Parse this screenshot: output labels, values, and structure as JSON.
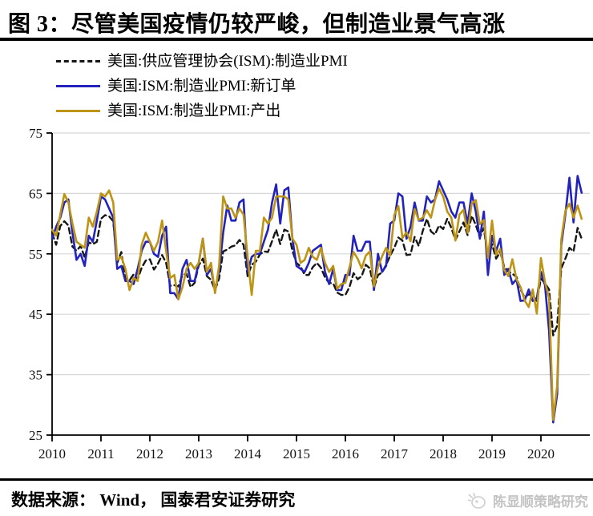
{
  "title": "图 3：尽管美国疫情仍较严峻，但制造业景气高涨",
  "legend": {
    "items": [
      {
        "label": "美国:供应管理协会(ISM):制造业PMI",
        "color": "#161616",
        "dash": true
      },
      {
        "label": "美国:ISM:制造业PMI:新订单",
        "color": "#2222bd",
        "dash": false
      },
      {
        "label": "美国:ISM:制造业PMI:产出",
        "color": "#bd9414",
        "dash": false
      }
    ]
  },
  "footer": {
    "source": "数据来源： Wind， 国泰君安证券研究",
    "watermark": "陈显顺策略研究"
  },
  "chart_data": {
    "type": "line",
    "frequency": "monthly",
    "x_range": [
      "2010-01",
      "2020-11"
    ],
    "x_tick_labels": [
      "2010",
      "2011",
      "2012",
      "2013",
      "2014",
      "2015",
      "2016",
      "2017",
      "2018",
      "2019",
      "2020"
    ],
    "ylim": [
      25,
      75
    ],
    "yticks": [
      25,
      35,
      45,
      55,
      65,
      75
    ],
    "grid": "horizontal-light",
    "legend_position": "top-left",
    "axis_color": "#000000",
    "grid_color": "#d8d8d8",
    "series": [
      {
        "name": "美国:供应管理协会(ISM):制造业PMI",
        "color": "#161616",
        "dash": true,
        "width": 2.4,
        "values": [
          58.4,
          56.5,
          59.6,
          60.4,
          59.7,
          56.2,
          55.5,
          56.3,
          54.4,
          56.9,
          56.6,
          57.0,
          60.8,
          61.4,
          61.2,
          60.4,
          53.5,
          55.3,
          50.9,
          50.6,
          51.6,
          50.8,
          52.7,
          53.9,
          54.1,
          52.4,
          53.4,
          54.8,
          53.5,
          49.7,
          49.8,
          49.6,
          51.5,
          51.7,
          49.5,
          50.2,
          53.1,
          54.2,
          51.3,
          50.7,
          49.0,
          50.9,
          55.4,
          55.7,
          56.2,
          56.4,
          57.3,
          56.5,
          51.3,
          53.2,
          53.7,
          54.9,
          55.4,
          55.3,
          57.1,
          59.0,
          56.6,
          59.0,
          58.7,
          55.5,
          53.5,
          52.9,
          51.5,
          51.5,
          52.8,
          53.5,
          52.7,
          51.1,
          50.2,
          50.1,
          48.6,
          48.2,
          48.2,
          49.5,
          51.8,
          50.8,
          51.3,
          53.2,
          52.6,
          49.4,
          51.5,
          51.9,
          53.2,
          54.7,
          56.0,
          57.7,
          57.2,
          54.8,
          54.9,
          57.8,
          56.3,
          58.8,
          60.8,
          58.7,
          58.2,
          59.7,
          59.1,
          60.8,
          59.3,
          57.3,
          58.7,
          60.2,
          58.1,
          61.3,
          59.8,
          57.7,
          59.3,
          54.1,
          56.6,
          54.2,
          55.3,
          52.8,
          52.1,
          51.7,
          51.2,
          49.1,
          47.8,
          48.3,
          48.1,
          47.2,
          50.9,
          50.1,
          49.1,
          41.5,
          43.1,
          52.6,
          54.2,
          56.0,
          55.4,
          59.3,
          57.5
        ]
      },
      {
        "name": "美国:ISM:制造业PMI:新订单",
        "color": "#2222bd",
        "dash": false,
        "width": 2.6,
        "values": [
          57.5,
          59.5,
          61.0,
          63.5,
          64.0,
          58.5,
          54.0,
          55.0,
          53.0,
          58.0,
          57.0,
          60.5,
          64.5,
          64.0,
          62.5,
          61.0,
          52.5,
          53.0,
          50.5,
          50.5,
          50.0,
          52.5,
          55.5,
          57.0,
          57.0,
          55.0,
          54.5,
          58.0,
          59.5,
          48.5,
          48.5,
          47.5,
          52.5,
          54.0,
          50.5,
          50.5,
          53.5,
          57.5,
          51.5,
          52.5,
          49.0,
          52.0,
          58.5,
          63.0,
          60.5,
          60.5,
          63.5,
          64.0,
          52.0,
          54.5,
          55.0,
          55.0,
          57.0,
          59.0,
          63.5,
          66.5,
          60.0,
          65.5,
          66.0,
          57.5,
          53.0,
          52.5,
          52.0,
          53.5,
          55.5,
          56.0,
          56.5,
          52.0,
          50.0,
          52.5,
          49.0,
          49.0,
          51.5,
          51.5,
          58.0,
          55.5,
          55.5,
          57.0,
          57.0,
          49.0,
          55.0,
          52.0,
          53.0,
          60.0,
          60.5,
          65.0,
          64.5,
          57.5,
          59.5,
          63.5,
          60.5,
          60.5,
          64.5,
          63.5,
          64.0,
          67.0,
          65.5,
          64.0,
          62.0,
          61.0,
          63.5,
          63.5,
          60.0,
          65.0,
          62.0,
          57.5,
          62.0,
          51.5,
          58.0,
          55.5,
          57.5,
          51.5,
          52.5,
          50.0,
          50.8,
          47.2,
          47.3,
          49.1,
          47.2,
          47.6,
          52.0,
          49.8,
          42.2,
          27.1,
          31.8,
          56.4,
          61.5,
          67.6,
          60.2,
          67.9,
          65.1
        ]
      },
      {
        "name": "美国:ISM:制造业PMI:产出",
        "color": "#bd9414",
        "dash": false,
        "width": 2.6,
        "values": [
          59.0,
          58.0,
          61.5,
          64.9,
          63.5,
          60.0,
          57.0,
          56.5,
          56.0,
          61.0,
          59.5,
          62.0,
          65.0,
          64.5,
          65.5,
          63.5,
          54.0,
          54.5,
          52.5,
          49.0,
          51.0,
          50.5,
          56.5,
          58.5,
          57.0,
          55.5,
          57.0,
          60.5,
          55.5,
          51.0,
          51.5,
          47.5,
          49.5,
          52.5,
          53.5,
          52.5,
          53.5,
          57.5,
          52.0,
          53.5,
          48.5,
          53.0,
          64.5,
          62.5,
          62.5,
          61.0,
          62.5,
          61.5,
          54.5,
          48.2,
          55.5,
          55.5,
          61.0,
          60.0,
          61.0,
          64.5,
          64.5,
          64.5,
          64.0,
          57.5,
          56.5,
          53.5,
          54.0,
          56.0,
          54.5,
          54.0,
          56.0,
          53.5,
          52.0,
          53.0,
          49.2,
          50.0,
          50.2,
          52.8,
          55.3,
          54.2,
          52.6,
          54.7,
          55.4,
          49.6,
          52.8,
          54.6,
          56.0,
          54.7,
          61.4,
          62.9,
          57.6,
          58.6,
          57.1,
          62.4,
          60.6,
          61.0,
          62.2,
          61.0,
          63.9,
          65.8,
          64.5,
          62.0,
          61.0,
          57.2,
          61.5,
          62.3,
          58.5,
          63.3,
          63.9,
          59.9,
          60.6,
          54.3,
          60.5,
          54.8,
          55.8,
          52.3,
          51.3,
          54.1,
          50.8,
          49.5,
          47.3,
          46.2,
          49.1,
          45.1,
          54.3,
          50.3,
          47.7,
          27.5,
          33.2,
          57.3,
          62.1,
          63.3,
          61.0,
          63.0,
          60.8
        ]
      }
    ]
  }
}
